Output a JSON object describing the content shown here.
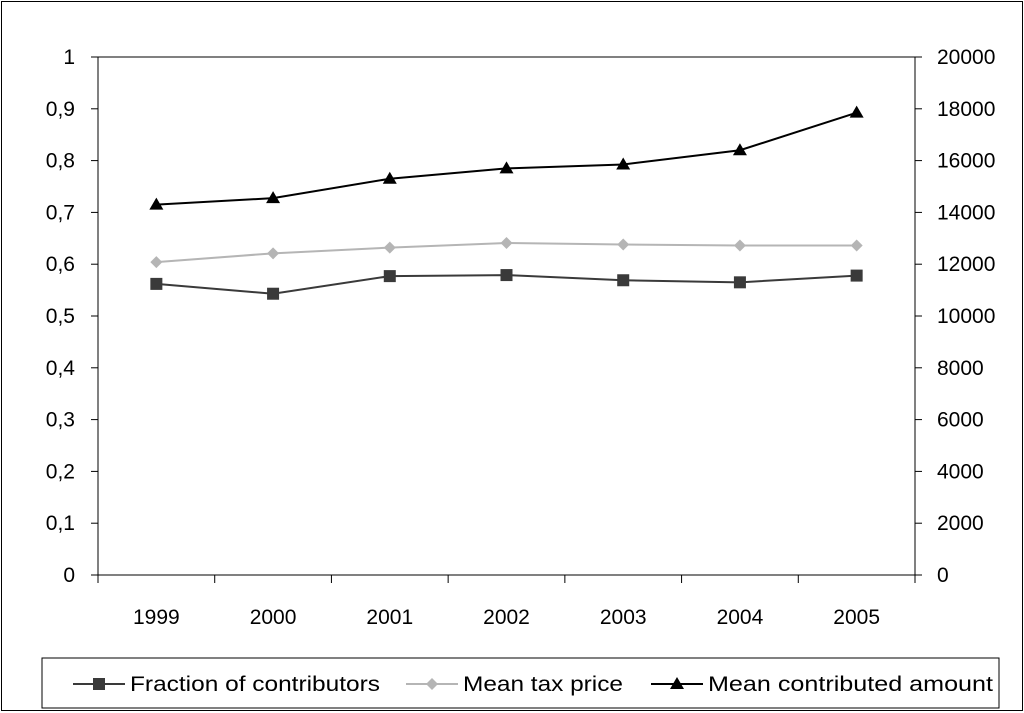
{
  "colors": {
    "background": "#ffffff",
    "frame": "#000000",
    "fraction_series": "#3a3a3a",
    "tax_price_series": "#b5b5b5",
    "contributed_series": "#000000"
  },
  "chart_data": {
    "type": "line",
    "title": "",
    "xlabel": "",
    "ylabel_left": "",
    "ylabel_right": "",
    "grid": false,
    "legend_position": "bottom",
    "categories": [
      "1999",
      "2000",
      "2001",
      "2002",
      "2003",
      "2004",
      "2005"
    ],
    "y_left": {
      "min": 0,
      "max": 1,
      "ticks": [
        0,
        0.1,
        0.2,
        0.3,
        0.4,
        0.5,
        0.6,
        0.7,
        0.8,
        0.9,
        1
      ],
      "tick_labels": [
        "0",
        "0,1",
        "0,2",
        "0,3",
        "0,4",
        "0,5",
        "0,6",
        "0,7",
        "0,8",
        "0,9",
        "1"
      ]
    },
    "y_right": {
      "min": 0,
      "max": 20000,
      "ticks": [
        0,
        2000,
        4000,
        6000,
        8000,
        10000,
        12000,
        14000,
        16000,
        18000,
        20000
      ],
      "tick_labels": [
        "0",
        "2000",
        "4000",
        "6000",
        "8000",
        "10000",
        "12000",
        "14000",
        "16000",
        "18000",
        "20000"
      ]
    },
    "series": [
      {
        "name": "Fraction of contributors",
        "axis": "left",
        "marker": "square",
        "color_key": "fraction_series",
        "values": [
          0.562,
          0.543,
          0.577,
          0.579,
          0.569,
          0.565,
          0.578
        ]
      },
      {
        "name": "Mean tax price",
        "axis": "left",
        "marker": "diamond",
        "color_key": "tax_price_series",
        "values": [
          0.604,
          0.621,
          0.632,
          0.641,
          0.638,
          0.636,
          0.636
        ]
      },
      {
        "name": "Mean contributed amount",
        "axis": "right",
        "marker": "triangle",
        "color_key": "contributed_series",
        "values": [
          14300,
          14550,
          15300,
          15700,
          15850,
          16400,
          17850
        ]
      }
    ]
  }
}
